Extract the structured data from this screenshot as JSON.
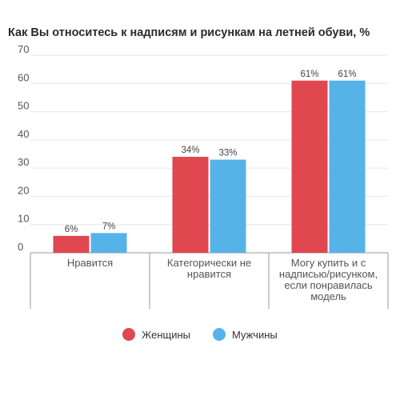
{
  "chart_data": {
    "type": "bar",
    "title": "Как Вы относитесь к надписям и рисункам на летней обуви, %",
    "categories": [
      [
        "Нравится"
      ],
      [
        "Категорически не",
        "нравится"
      ],
      [
        "Могу купить и с",
        "надписью/рисунком,",
        "если понравилась",
        "модель"
      ]
    ],
    "series": [
      {
        "name": "Женщины",
        "values": [
          6,
          34,
          61
        ],
        "labels": [
          "6%",
          "34%",
          "61%"
        ],
        "color": "#e0474f"
      },
      {
        "name": "Мужчины",
        "values": [
          7,
          33,
          61
        ],
        "labels": [
          "7%",
          "33%",
          "61%"
        ],
        "color": "#56b3e8"
      }
    ],
    "yticks": [
      "0",
      "10",
      "20",
      "30",
      "40",
      "50",
      "60",
      "70"
    ],
    "ylim": [
      0,
      70
    ],
    "grid": true,
    "legend_position": "bottom"
  }
}
